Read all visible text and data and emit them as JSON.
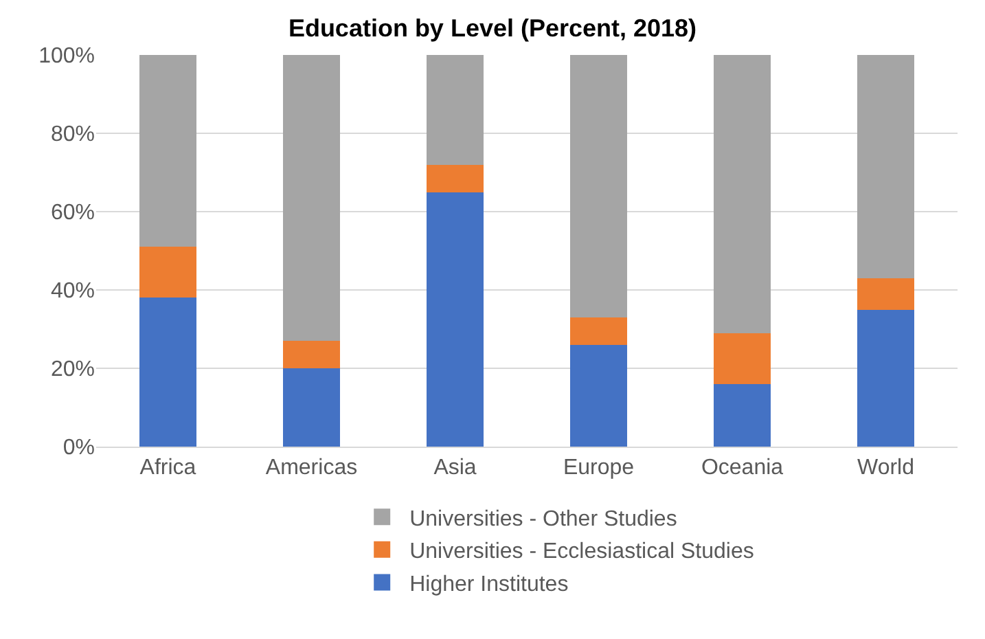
{
  "chart_data": {
    "type": "bar",
    "stacked": true,
    "title": "Education by Level (Percent, 2018)",
    "categories": [
      "Africa",
      "Americas",
      "Asia",
      "Europe",
      "Oceania",
      "World"
    ],
    "series": [
      {
        "name": "Higher Institutes",
        "color": "#4472c4",
        "values": [
          38,
          20,
          65,
          26,
          16,
          35
        ]
      },
      {
        "name": "Universities - Ecclesiastical Studies",
        "color": "#ed7d31",
        "values": [
          13,
          7,
          7,
          7,
          13,
          8
        ]
      },
      {
        "name": "Universities - Other Studies",
        "color": "#a5a5a5",
        "values": [
          49,
          73,
          28,
          67,
          71,
          57
        ]
      }
    ],
    "ylim": [
      0,
      100
    ],
    "yticks": [
      {
        "value": 0,
        "label": "0%"
      },
      {
        "value": 20,
        "label": "20%"
      },
      {
        "value": 40,
        "label": "40%"
      },
      {
        "value": 60,
        "label": "60%"
      },
      {
        "value": 80,
        "label": "80%"
      },
      {
        "value": 100,
        "label": "100%"
      }
    ],
    "grid": "y",
    "legend": "bottom"
  }
}
